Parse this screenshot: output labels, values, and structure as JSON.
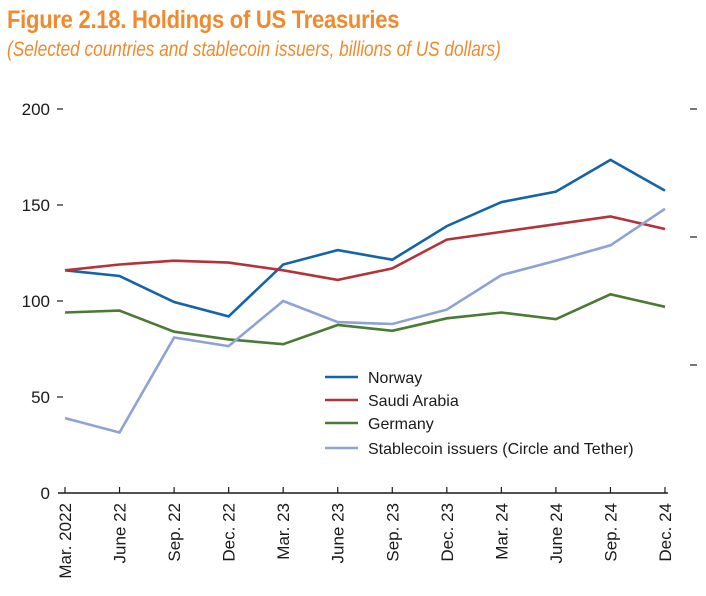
{
  "header": {
    "title": "Figure 2.18. Holdings of US Treasuries",
    "subtitle": "(Selected countries and stablecoin issuers, billions of US dollars)"
  },
  "colors": {
    "title": "#f08a2c",
    "Norway": "#1464a8",
    "Saudi Arabia": "#b2343a",
    "Germany": "#4b7a34",
    "Stablecoin issuers (Circle and Tether)": "#8ea2d4",
    "axis": "#1a1a1a"
  },
  "chart_data": {
    "type": "line",
    "title": "Figure 2.18. Holdings of US Treasuries",
    "subtitle": "(Selected countries and stablecoin issuers, billions of US dollars)",
    "xlabel": "",
    "ylabel": "",
    "categories": [
      "Mar. 2022",
      "June 22",
      "Sep. 22",
      "Dec. 22",
      "Mar. 23",
      "June 23",
      "Sep. 23",
      "Dec. 23",
      "Mar. 24",
      "June 24",
      "Sep. 24",
      "Dec. 24"
    ],
    "ylim": [
      0,
      200
    ],
    "yticks": [
      0,
      50,
      100,
      150,
      200
    ],
    "ytick_labels": [
      "0",
      "50",
      "100",
      "150",
      "200"
    ],
    "grid": false,
    "legend_position": "bottom-right",
    "series": [
      {
        "name": "Norway",
        "values": [
          116,
          113,
          99.5,
          92,
          119,
          126.5,
          121.5,
          139,
          151.5,
          157,
          173.5,
          157.5
        ]
      },
      {
        "name": "Saudi Arabia",
        "values": [
          116,
          119,
          121,
          120,
          116,
          111,
          117,
          132,
          136,
          140,
          144,
          137.5
        ]
      },
      {
        "name": "Germany",
        "values": [
          94,
          95,
          84,
          80,
          77.5,
          87.5,
          84.5,
          91,
          94,
          90.5,
          103.5,
          97
        ]
      },
      {
        "name": "Stablecoin issuers (Circle and Tether)",
        "values": [
          39,
          31.5,
          81,
          76.5,
          100,
          89,
          88,
          95.5,
          113.5,
          121,
          129,
          148
        ]
      }
    ]
  }
}
